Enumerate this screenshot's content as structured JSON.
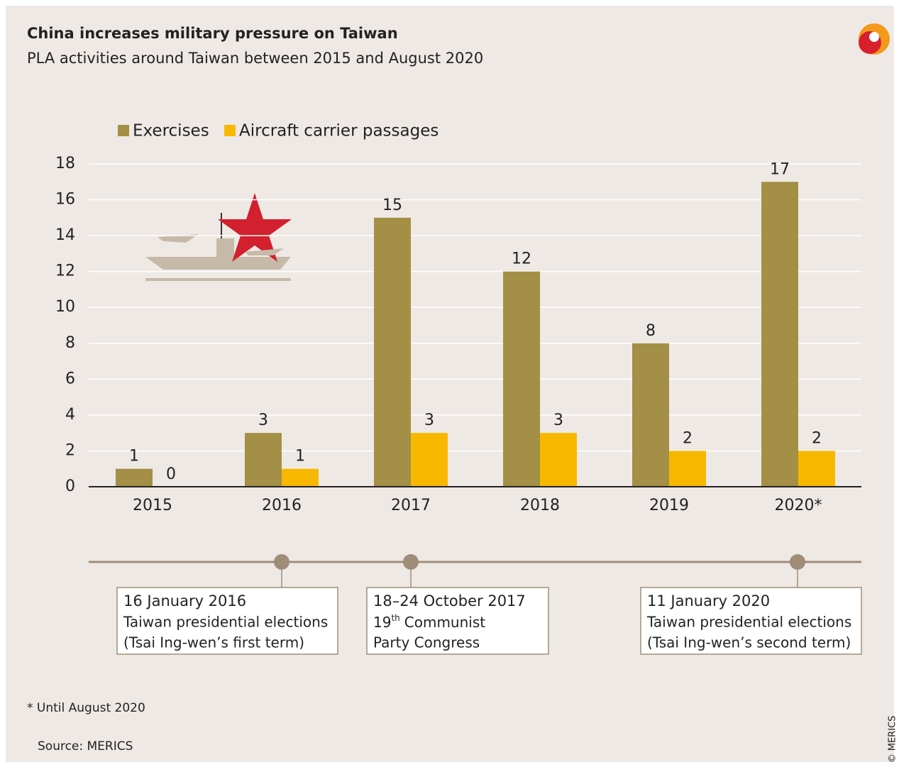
{
  "chart_data": {
    "type": "bar",
    "title": "China increases military pressure on Taiwan",
    "subtitle": "PLA activities around Taiwan between 2015 and August 2020",
    "categories": [
      "2015",
      "2016",
      "2017",
      "2018",
      "2019",
      "2020*"
    ],
    "series": [
      {
        "name": "Exercises",
        "color": "#a38f45",
        "values": [
          1,
          3,
          15,
          12,
          8,
          17
        ]
      },
      {
        "name": "Aircraft carrier passages",
        "color": "#f8b800",
        "values": [
          0,
          1,
          3,
          3,
          2,
          2
        ]
      }
    ],
    "ylim": [
      0,
      18
    ],
    "yticks": [
      0,
      2,
      4,
      6,
      8,
      10,
      12,
      14,
      16,
      18
    ],
    "grid": true,
    "events": [
      {
        "date": "16 January 2016",
        "lines": [
          "Taiwan presidential elections",
          "(Tsai Ing-wen’s first term)"
        ]
      },
      {
        "date": "18–24 October 2017",
        "ordinal": "19",
        "ordinal_suffix": "th",
        "lines": [
          "Communist",
          "Party Congress"
        ]
      },
      {
        "date": "11 January 2020",
        "lines": [
          "Taiwan presidential elections",
          "(Tsai Ing-wen’s second term)"
        ]
      }
    ],
    "footnote": "* Until August 2020",
    "source": "Source: MERICS",
    "copyright": "© MERICS"
  }
}
